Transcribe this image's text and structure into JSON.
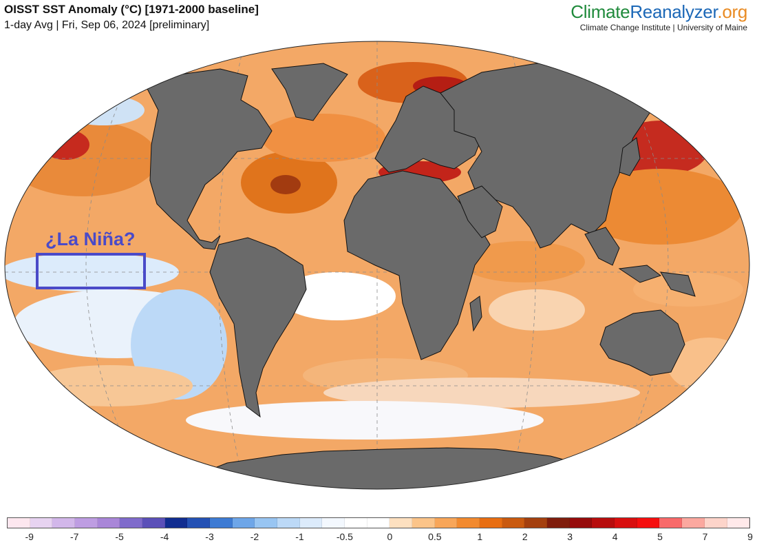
{
  "header": {
    "title": "OISST SST Anomaly (°C) [1971-2000 baseline]",
    "subtitle": "1-day Avg | Fri, Sep 06, 2024 [preliminary]"
  },
  "brand": {
    "part1": "Climate",
    "part2": "Reanalyzer",
    "part3": ".org",
    "tagline": "Climate Change Institute | University of Maine",
    "colors": {
      "part1": "#1f8a3b",
      "part2": "#1c68b7",
      "part3": "#e98b23"
    }
  },
  "map": {
    "projection": "robinson-like oval, Atlantic-centered",
    "land_color": "#6a6a6a",
    "ocean_base_color": "#f3a866",
    "callout": {
      "label": "¿La Niña?",
      "box_color": "#4a4ac8",
      "region": "equatorial-east-pacific"
    }
  },
  "legend": {
    "swatches": [
      "#fde7ef",
      "#e7d3f1",
      "#d2b7ea",
      "#be9de2",
      "#a986d8",
      "#7f6bcb",
      "#5b50b8",
      "#112d90",
      "#2451b4",
      "#3e7bd3",
      "#6ea6e8",
      "#98c5f2",
      "#bcd9f7",
      "#dcebfb",
      "#f3f8fe",
      "#ffffff",
      "#ffffff",
      "#fde0c0",
      "#fbc489",
      "#f8a659",
      "#f28a2f",
      "#e86e12",
      "#c95a10",
      "#a4400f",
      "#7f1d0c",
      "#960b0b",
      "#b70d0d",
      "#d80f0f",
      "#f50f0f",
      "#f86a6a",
      "#fba89f",
      "#fdd4ca",
      "#ffe9ea"
    ],
    "ticks": [
      "-9",
      "-7",
      "-5",
      "-4",
      "-3",
      "-2",
      "-1",
      "-0.5",
      "0",
      "0.5",
      "1",
      "2",
      "3",
      "4",
      "5",
      "7",
      "9"
    ]
  }
}
